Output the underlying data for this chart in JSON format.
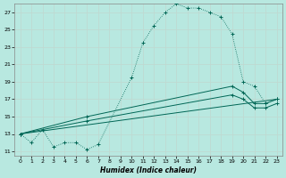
{
  "xlabel": "Humidex (Indice chaleur)",
  "background_color": "#b8e8e0",
  "grid_color": "#c0d8d0",
  "line_color": "#006655",
  "xlim": [
    -0.5,
    23.5
  ],
  "ylim": [
    10.5,
    28.0
  ],
  "xticks": [
    0,
    1,
    2,
    3,
    4,
    5,
    6,
    7,
    8,
    9,
    10,
    11,
    12,
    13,
    14,
    15,
    16,
    17,
    18,
    19,
    20,
    21,
    22,
    23
  ],
  "yticks": [
    11,
    13,
    15,
    17,
    19,
    21,
    23,
    25,
    27
  ],
  "main_x": [
    0,
    1,
    2,
    3,
    4,
    5,
    6,
    7,
    10,
    11,
    12,
    13,
    14,
    15,
    16,
    17,
    18,
    19,
    20,
    21,
    22,
    23
  ],
  "main_y": [
    13.0,
    12.0,
    13.5,
    11.5,
    12.0,
    12.0,
    11.2,
    11.8,
    19.5,
    23.5,
    25.5,
    27.0,
    28.0,
    27.5,
    27.5,
    27.0,
    26.5,
    24.5,
    19.0,
    18.5,
    16.5,
    17.0
  ],
  "line2_x": [
    0,
    6,
    19,
    20,
    21,
    22,
    23
  ],
  "line2_y": [
    13.0,
    15.0,
    18.5,
    17.8,
    16.5,
    16.5,
    17.0
  ],
  "line3_x": [
    0,
    6,
    19,
    20,
    21,
    22,
    23
  ],
  "line3_y": [
    13.0,
    14.5,
    17.5,
    17.0,
    16.0,
    16.0,
    16.5
  ],
  "line4_x": [
    0,
    23
  ],
  "line4_y": [
    13.0,
    17.0
  ]
}
